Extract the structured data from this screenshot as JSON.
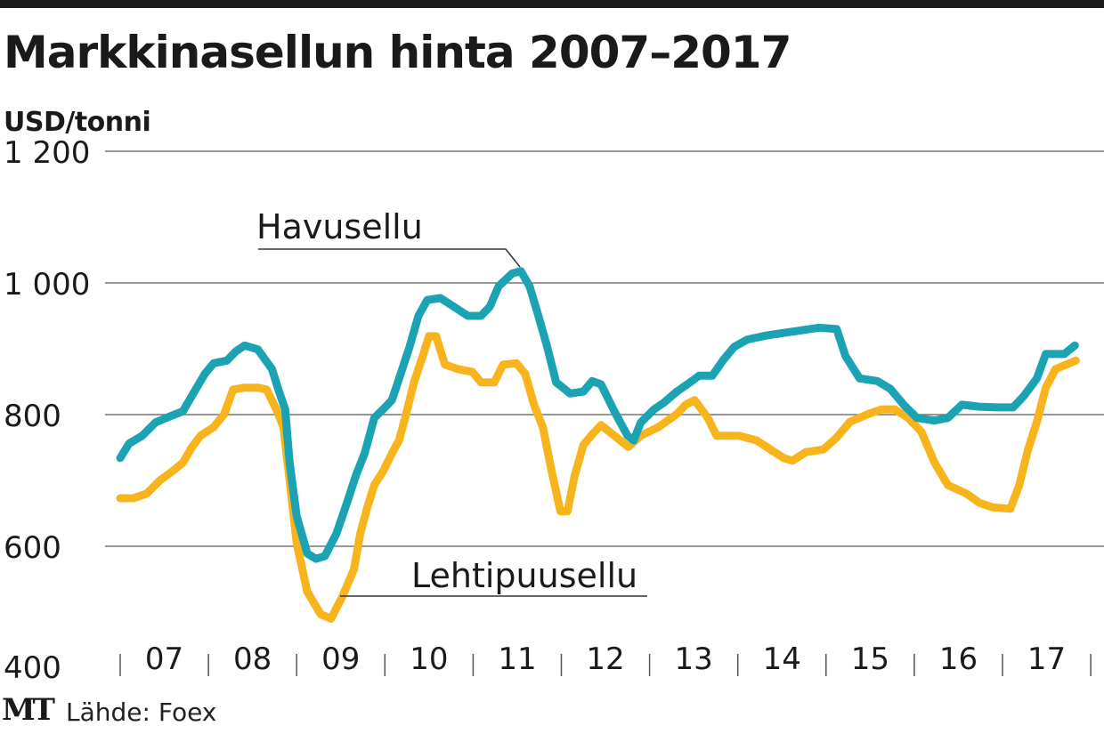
{
  "title": "Markkinasellun hinta 2007–2017",
  "chart_data": {
    "type": "line",
    "title": "Markkinasellun hinta 2007–2017",
    "ylabel": "USD/tonni",
    "xlabel": "",
    "ylim": [
      400,
      1200
    ],
    "xlim": [
      2007,
      2018
    ],
    "yticks": [
      400,
      600,
      800,
      1000,
      1200
    ],
    "ytick_labels": [
      "400",
      "600",
      "800",
      "1 000",
      "1 200"
    ],
    "xtick_labels": [
      "07",
      "08",
      "09",
      "10",
      "11",
      "12",
      "13",
      "14",
      "15",
      "16",
      "17"
    ],
    "grid": true,
    "series": [
      {
        "name": "Havusellu",
        "color": "#1ba3b4",
        "x": [
          2007.0,
          2007.1,
          2007.25,
          2007.4,
          2007.56,
          2007.71,
          2007.81,
          2007.96,
          2008.06,
          2008.21,
          2008.31,
          2008.41,
          2008.56,
          2008.72,
          2008.8,
          2008.87,
          2008.92,
          2009.0,
          2009.12,
          2009.22,
          2009.32,
          2009.45,
          2009.57,
          2009.67,
          2009.77,
          2009.88,
          2009.98,
          2010.08,
          2010.18,
          2010.28,
          2010.38,
          2010.48,
          2010.63,
          2010.78,
          2010.94,
          2011.09,
          2011.19,
          2011.29,
          2011.44,
          2011.54,
          2011.64,
          2011.74,
          2011.84,
          2011.94,
          2012.1,
          2012.25,
          2012.35,
          2012.45,
          2012.6,
          2012.75,
          2012.82,
          2012.9,
          2013.05,
          2013.16,
          2013.31,
          2013.46,
          2013.56,
          2013.71,
          2013.83,
          2013.96,
          2014.11,
          2014.32,
          2014.52,
          2014.72,
          2014.92,
          2015.12,
          2015.22,
          2015.38,
          2015.58,
          2015.73,
          2015.88,
          2016.03,
          2016.23,
          2016.38,
          2016.54,
          2016.74,
          2016.94,
          2017.12,
          2017.24,
          2017.39,
          2017.49,
          2017.7,
          2017.82
        ],
        "values": [
          734,
          756,
          768,
          788,
          797,
          805,
          828,
          862,
          878,
          882,
          896,
          905,
          899,
          869,
          835,
          808,
          727,
          646,
          589,
          581,
          585,
          619,
          666,
          707,
          741,
          795,
          808,
          822,
          862,
          903,
          950,
          974,
          977,
          964,
          950,
          950,
          964,
          995,
          1014,
          1018,
          995,
          950,
          903,
          849,
          832,
          835,
          851,
          846,
          805,
          768,
          761,
          788,
          808,
          818,
          835,
          849,
          859,
          859,
          882,
          903,
          914,
          920,
          924,
          928,
          932,
          930,
          889,
          855,
          851,
          839,
          815,
          795,
          791,
          795,
          815,
          812,
          811,
          811,
          828,
          855,
          892,
          892,
          905
        ]
      },
      {
        "name": "Lehtipuusellu",
        "color": "#f8b41c",
        "x": [
          2007.0,
          2007.15,
          2007.3,
          2007.45,
          2007.61,
          2007.71,
          2007.81,
          2007.91,
          2008.06,
          2008.18,
          2008.28,
          2008.41,
          2008.56,
          2008.66,
          2008.77,
          2008.85,
          2008.92,
          2009.0,
          2009.12,
          2009.27,
          2009.39,
          2009.52,
          2009.65,
          2009.72,
          2009.8,
          2009.88,
          2009.98,
          2010.08,
          2010.16,
          2010.23,
          2010.33,
          2010.43,
          2010.5,
          2010.58,
          2010.68,
          2010.83,
          2010.99,
          2011.09,
          2011.24,
          2011.34,
          2011.49,
          2011.59,
          2011.69,
          2011.79,
          2011.89,
          2011.99,
          2012.07,
          2012.15,
          2012.25,
          2012.35,
          2012.45,
          2012.6,
          2012.76,
          2012.9,
          2013.1,
          2013.31,
          2013.41,
          2013.51,
          2013.66,
          2013.76,
          2014.01,
          2014.21,
          2014.37,
          2014.52,
          2014.62,
          2014.77,
          2014.97,
          2015.12,
          2015.27,
          2015.48,
          2015.63,
          2015.78,
          2015.93,
          2016.08,
          2016.23,
          2016.38,
          2016.59,
          2016.74,
          2016.89,
          2017.09,
          2017.19,
          2017.29,
          2017.39,
          2017.49,
          2017.6,
          2017.83
        ],
        "values": [
          673,
          673,
          680,
          700,
          716,
          727,
          750,
          768,
          781,
          801,
          838,
          841,
          841,
          838,
          808,
          781,
          700,
          605,
          531,
          497,
          490,
          524,
          565,
          619,
          659,
          693,
          714,
          741,
          761,
          795,
          849,
          889,
          919,
          919,
          876,
          869,
          865,
          849,
          849,
          876,
          878,
          862,
          815,
          781,
          714,
          653,
          653,
          707,
          754,
          770,
          784,
          768,
          751,
          768,
          781,
          801,
          815,
          822,
          795,
          768,
          768,
          761,
          747,
          734,
          730,
          743,
          747,
          765,
          789,
          801,
          808,
          808,
          795,
          774,
          727,
          693,
          680,
          666,
          659,
          657,
          693,
          747,
          789,
          841,
          869,
          882
        ]
      }
    ]
  },
  "footer": {
    "logo": "MT",
    "source": "Lähde: Foex"
  }
}
